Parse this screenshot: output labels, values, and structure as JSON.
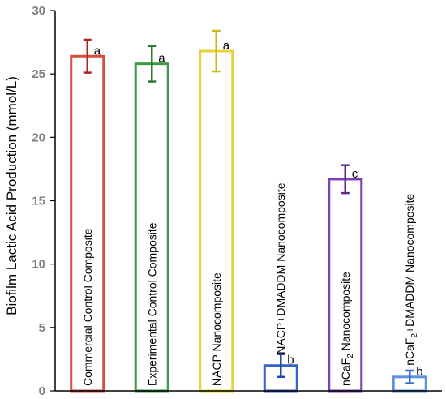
{
  "chart_data": {
    "type": "bar",
    "ylabel": "Biofilm Lactic Acid Production (mmol/L)",
    "xlabel": "",
    "ylim": [
      0,
      30
    ],
    "yticks": [
      0,
      5,
      10,
      15,
      20,
      25,
      30
    ],
    "grid": false,
    "legend": "none",
    "categories": [
      {
        "base": "Commercial Control Composite",
        "sub": "",
        "tail": ""
      },
      {
        "base": "Experimental Control Composite",
        "sub": "",
        "tail": ""
      },
      {
        "base": "NACP Nanocomposite",
        "sub": "",
        "tail": ""
      },
      {
        "base": "NACP+DMADDM Nanocomposite",
        "sub": "",
        "tail": ""
      },
      {
        "base": "nCaF",
        "sub": "2",
        "tail": " Nanocomposite"
      },
      {
        "base": "nCaF",
        "sub": "2",
        "tail": "+DMADDM Nanocomposite"
      }
    ],
    "values": [
      26.4,
      25.8,
      26.8,
      2.0,
      16.7,
      1.1
    ],
    "errors": [
      1.3,
      1.4,
      1.6,
      0.9,
      1.1,
      0.5
    ],
    "letters": [
      "a",
      "a",
      "a",
      "b",
      "c",
      "b"
    ],
    "colors": {
      "bar_outlines": [
        "#d94a3f",
        "#3d9b48",
        "#e6d33a",
        "#3563c4",
        "#7d3fb4",
        "#5b93e0"
      ],
      "error_bars": [
        "#a82a1e",
        "#2a7a34",
        "#c9b51f",
        "#1f46a8",
        "#5a2890",
        "#2f6fcf"
      ],
      "axis": "#000000",
      "tick_labels": "#7f7f7f"
    }
  }
}
